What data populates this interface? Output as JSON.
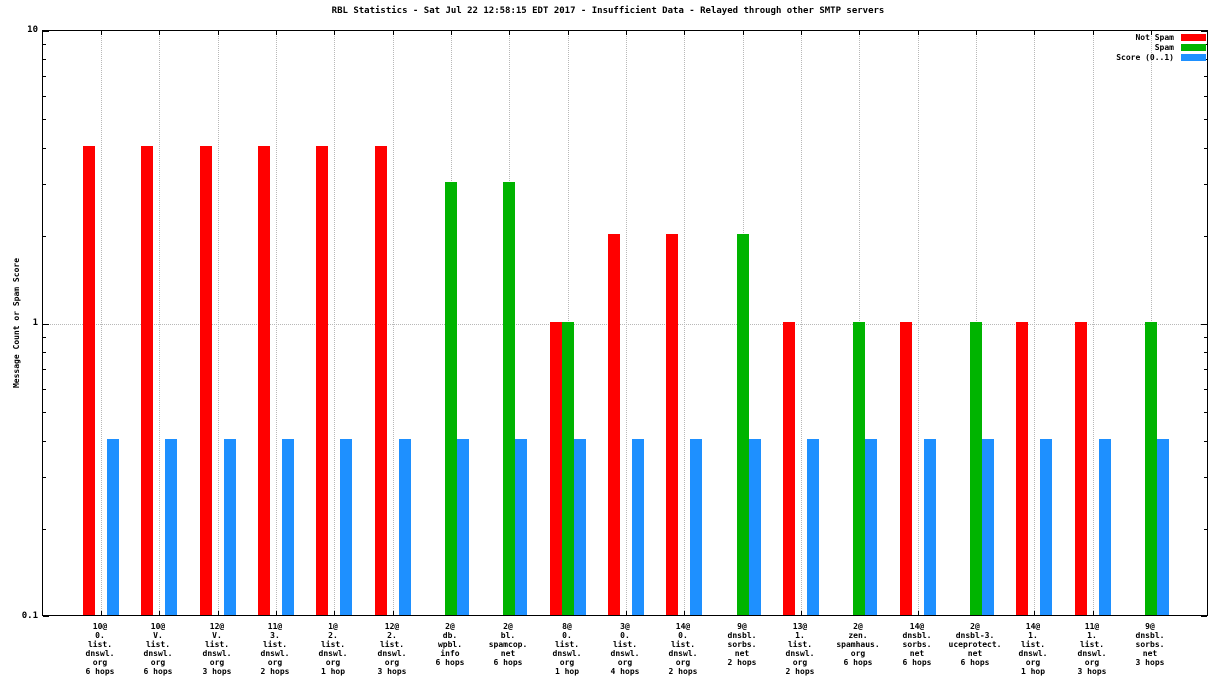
{
  "title": "RBL Statistics - Sat Jul 22 12:58:15 EDT 2017 - Insufficient Data - Relayed through other SMTP servers",
  "chart_data": {
    "type": "bar",
    "scale": "log",
    "title": "RBL Statistics - Sat Jul 22 12:58:15 EDT 2017 - Insufficient Data - Relayed through other SMTP servers",
    "xlabel": "",
    "ylabel": "Message Count or Spam Score",
    "ylim": [
      0.1,
      10
    ],
    "yticks": [
      "10",
      "1",
      "0.1"
    ],
    "grid": true,
    "legend_position": "top-right",
    "legend": [
      {
        "label": "Not Spam",
        "color": "#ff0000"
      },
      {
        "label": "Spam",
        "color": "#00b400"
      },
      {
        "label": "Score (0..1)",
        "color": "#1e90ff"
      }
    ],
    "categories": [
      [
        "10@",
        "0.",
        "list.",
        "dnswl.",
        "org",
        "6 hops"
      ],
      [
        "10@",
        "V.",
        "list.",
        "dnswl.",
        "org",
        "6 hops"
      ],
      [
        "12@",
        "V.",
        "list.",
        "dnswl.",
        "org",
        "3 hops"
      ],
      [
        "11@",
        "3.",
        "list.",
        "dnswl.",
        "org",
        "2 hops"
      ],
      [
        "1@",
        "2.",
        "list.",
        "dnswl.",
        "org",
        "1 hop"
      ],
      [
        "12@",
        "2.",
        "list.",
        "dnswl.",
        "org",
        "3 hops"
      ],
      [
        "2@",
        "db.",
        "wpbl.",
        "info",
        "6 hops"
      ],
      [
        "2@",
        "bl.",
        "spamcop.",
        "net",
        "6 hops"
      ],
      [
        "8@",
        "0.",
        "list.",
        "dnswl.",
        "org",
        "1 hop"
      ],
      [
        "3@",
        "0.",
        "list.",
        "dnswl.",
        "org",
        "4 hops"
      ],
      [
        "14@",
        "0.",
        "list.",
        "dnswl.",
        "org",
        "2 hops"
      ],
      [
        "9@",
        "dnsbl.",
        "sorbs.",
        "net",
        "2 hops"
      ],
      [
        "13@",
        "1.",
        "list.",
        "dnswl.",
        "org",
        "2 hops"
      ],
      [
        "2@",
        "zen.",
        "spamhaus.",
        "org",
        "6 hops"
      ],
      [
        "14@",
        "dnsbl.",
        "sorbs.",
        "net",
        "6 hops"
      ],
      [
        "2@",
        "dnsbl-3.",
        "uceprotect.",
        "net",
        "6 hops"
      ],
      [
        "14@",
        "1.",
        "list.",
        "dnswl.",
        "org",
        "1 hop"
      ],
      [
        "11@",
        "1.",
        "list.",
        "dnswl.",
        "org",
        "3 hops"
      ],
      [
        "9@",
        "dnsbl.",
        "sorbs.",
        "net",
        "3 hops"
      ]
    ],
    "series": [
      {
        "name": "Not Spam",
        "color": "#ff0000",
        "values": [
          4,
          4,
          4,
          4,
          4,
          4,
          null,
          null,
          1,
          2,
          2,
          null,
          1,
          null,
          1,
          null,
          1,
          1,
          null
        ]
      },
      {
        "name": "Spam",
        "color": "#00b400",
        "values": [
          null,
          null,
          null,
          null,
          null,
          null,
          3,
          3,
          1,
          null,
          null,
          2,
          null,
          1,
          null,
          1,
          null,
          null,
          1
        ]
      },
      {
        "name": "Score (0..1)",
        "color": "#1e90ff",
        "values": [
          0.4,
          0.4,
          0.4,
          0.4,
          0.4,
          0.4,
          0.4,
          0.4,
          0.4,
          0.4,
          0.4,
          0.4,
          0.4,
          0.4,
          0.4,
          0.4,
          0.4,
          0.4,
          0.4
        ]
      }
    ]
  }
}
